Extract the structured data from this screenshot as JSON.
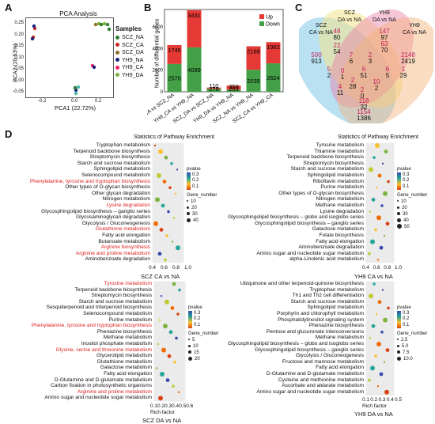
{
  "panels": {
    "a": "A",
    "b": "B",
    "c": "C",
    "d": "D"
  },
  "pca": {
    "title": "PCA Analysis",
    "xlabel": "PCA1 (22.72%)",
    "ylabel": "PCA2 (20.53%)",
    "legend_title": "Samples",
    "ticks_x": [
      "-0.2",
      "0.0",
      "0.2"
    ],
    "ticks_y": [
      "0.25",
      "0.20",
      "0.15",
      "0.10",
      "0.05",
      "0.00",
      "-0.05"
    ],
    "samples": [
      {
        "name": "SCZ_NA",
        "color": "#2e7d32"
      },
      {
        "name": "SCZ_CA",
        "color": "#c62828"
      },
      {
        "name": "SCZ_DA",
        "color": "#8d6e2a"
      },
      {
        "name": "YH9_NA",
        "color": "#1a237e"
      },
      {
        "name": "YH9_CA",
        "color": "#e91e63"
      },
      {
        "name": "YH9_DA",
        "color": "#7cb342"
      }
    ]
  },
  "bar": {
    "ylabel": "Number of differential genes",
    "legend": [
      "Up",
      "Down"
    ],
    "up_color": "#e53935",
    "down_color": "#43a047",
    "yticks": [
      "0",
      "2000",
      "4000",
      "6000"
    ],
    "chart_data": {
      "type": "bar",
      "categories": [
        "SCZ_CA vs SCZ_NA",
        "YH9_CA vs YH9_NA",
        "SCZ_DA vs SCZ_NA",
        "YH9_DA vs YH9_NA",
        "SCZ_NA vs YH9_NA",
        "SCZ_CA vs YH9_CA"
      ],
      "series": [
        {
          "name": "Up",
          "values": [
            1745,
            3431,
            110,
            359,
            2168,
            1962
          ]
        },
        {
          "name": "Down",
          "values": [
            2570,
            4099,
            278,
            203,
            2035,
            2624
          ]
        }
      ]
    }
  },
  "venn": {
    "labels": [
      {
        "text": "SCZ\nCA vs NA"
      },
      {
        "text": "SCZ\nDA vs NA"
      },
      {
        "text": "YH9\nDA vs NA"
      },
      {
        "text": "YH9\nCA vs NA"
      }
    ],
    "numbers": [
      {
        "up": "500",
        "down": "913"
      },
      {
        "up": "48",
        "down": "80"
      },
      {
        "up": "22",
        "down": "54"
      },
      {
        "up": "147",
        "down": "97"
      },
      {
        "up": "63",
        "down": "70"
      },
      {
        "up": "2148",
        "down": "2419"
      },
      {
        "up": "7",
        "down": "6"
      },
      {
        "up": "2",
        "down": "3"
      },
      {
        "up": "5",
        "down": "2"
      },
      {
        "up": "0",
        "down": "1"
      },
      {
        "up": "6",
        "down": "51"
      },
      {
        "up": "6",
        "down": "5"
      },
      {
        "up": "1",
        "down": "29"
      },
      {
        "up": "2",
        "down": "28"
      },
      {
        "up": "4",
        "down": "11"
      },
      {
        "up": "10",
        "down": "2"
      },
      {
        "up": "2",
        "down": "0"
      },
      {
        "up": "118",
        "down": "32"
      },
      {
        "up": "1154",
        "down": "1386"
      }
    ]
  },
  "enrich_header": "Statistics of Pathway Enrichment",
  "enrich": [
    {
      "label": "SCZ CA vs NA",
      "paths": [
        {
          "t": "Tryptophan metabolism",
          "red": false
        },
        {
          "t": "Terpenoid backbone biosynthesis",
          "red": false
        },
        {
          "t": "Streptomycin biosynthesis",
          "red": false
        },
        {
          "t": "Starch and sucrose metabolism",
          "red": false
        },
        {
          "t": "Sphingolipid metabolism",
          "red": false
        },
        {
          "t": "Selenocompound metabolism",
          "red": false
        },
        {
          "t": "Phenylalanine, tyrosine and tryptophan biosynthesis",
          "red": true
        },
        {
          "t": "Other types of O-glycan biosynthesis",
          "red": false
        },
        {
          "t": "Other glycan degradation",
          "red": false
        },
        {
          "t": "Nitrogen metabolism",
          "red": false
        },
        {
          "t": "Lysine degradation",
          "red": true
        },
        {
          "t": "Glycosphingolipid biosynthesis – ganglio series",
          "red": false
        },
        {
          "t": "Glycosaminoglycan degradation",
          "red": false
        },
        {
          "t": "Glycolysis / Gluconeogenesis",
          "red": false
        },
        {
          "t": "Glutathione metabolism",
          "red": true
        },
        {
          "t": "Fatty acid elongation",
          "red": false
        },
        {
          "t": "Butanoate metabolism",
          "red": false
        },
        {
          "t": "Arginine biosynthesis",
          "red": true
        },
        {
          "t": "Arginine and proline metabolism",
          "red": true
        },
        {
          "t": "Aminobenzoate degradation",
          "red": false
        }
      ],
      "xticks": [
        "0.4",
        "0.6",
        "0.8",
        "1.0"
      ],
      "legend_pvalue": [
        "0.3",
        "0.2",
        "0.1"
      ],
      "legend_gene": [
        "10",
        "20",
        "30",
        "40"
      ]
    },
    {
      "label": "YH9 CA vs NA",
      "paths": [
        {
          "t": "Tyrosine metabolism",
          "red": false
        },
        {
          "t": "Thiamine metabolism",
          "red": false
        },
        {
          "t": "Terpenoid backbone biosynthesis",
          "red": false
        },
        {
          "t": "Streptomycin biosynthesis",
          "red": false
        },
        {
          "t": "Starch and sucrose metabolism",
          "red": false
        },
        {
          "t": "Sphingolipid metabolism",
          "red": false
        },
        {
          "t": "Riboflavin metabolism",
          "red": false
        },
        {
          "t": "Purine metabolism",
          "red": false
        },
        {
          "t": "Other types of O-glycan biosynthesis",
          "red": false
        },
        {
          "t": "Nitrogen metabolism",
          "red": false
        },
        {
          "t": "Methane metabolism",
          "red": false
        },
        {
          "t": "Lysine degradation",
          "red": false
        },
        {
          "t": "Glycosphingolipid biosynthesis – globo and isoglobo series",
          "red": false
        },
        {
          "t": "Glycosphingolipid biosynthesis – ganglio series",
          "red": false
        },
        {
          "t": "Galactose metabolism",
          "red": false
        },
        {
          "t": "Folate biosynthesis",
          "red": false
        },
        {
          "t": "Fatty acid elongation",
          "red": false
        },
        {
          "t": "Aminobenzoate degradation",
          "red": false
        },
        {
          "t": "Amino sugar and nucleotide sugar metabolism",
          "red": false
        },
        {
          "t": "alpha-Linolenic acid metabolism",
          "red": false
        }
      ],
      "xticks": [
        "0.4",
        "0.6",
        "0.8",
        "1.0"
      ],
      "legend_pvalue": [
        "0.3",
        "0.2",
        "0.1"
      ],
      "legend_gene": [
        "10",
        "20",
        "30",
        "40",
        "50"
      ]
    },
    {
      "label": "SCZ DA vs NA",
      "paths": [
        {
          "t": "Tyrosine metabolism",
          "red": true
        },
        {
          "t": "Terpenoid backbone biosynthesis",
          "red": false
        },
        {
          "t": "Streptomycin biosynthesis",
          "red": false
        },
        {
          "t": "Starch and sucrose metabolism",
          "red": false
        },
        {
          "t": "Sesquiterpenoid and triterpenoid biosynthesis",
          "red": false
        },
        {
          "t": "Selenocompound metabolism",
          "red": false
        },
        {
          "t": "Purine metabolism",
          "red": false
        },
        {
          "t": "Phenylalanine, tyrosine and tryptophan biosynthesis",
          "red": true
        },
        {
          "t": "Phenazine biosynthesis",
          "red": false
        },
        {
          "t": "Methane metabolism",
          "red": false
        },
        {
          "t": "Inositol phosphate metabolism",
          "red": false
        },
        {
          "t": "Glycine, serine and threonine metabolism",
          "red": true
        },
        {
          "t": "Glycerolipid metabolism",
          "red": false
        },
        {
          "t": "Glutathione metabolism",
          "red": false
        },
        {
          "t": "Galactose metabolism",
          "red": false
        },
        {
          "t": "Fatty acid elongation",
          "red": false
        },
        {
          "t": "D-Glutamine and D-glutamate metabolism",
          "red": false
        },
        {
          "t": "Carbon fixation in photosynthetic organisms",
          "red": false
        },
        {
          "t": "Arginine and proline metabolism",
          "red": true
        },
        {
          "t": "Amino sugar and nucleotide sugar metabolism",
          "red": false
        }
      ],
      "xticks": [
        "0.1",
        "0.2",
        "0.3",
        "0.4",
        "0.5",
        "0.6"
      ],
      "xlabel": "Rich factor",
      "legend_pvalue": [
        "0.3",
        "0.2",
        "0.1"
      ],
      "legend_gene": [
        "5",
        "10",
        "15",
        "20"
      ]
    },
    {
      "label": "YH9 DA vs NA",
      "paths": [
        {
          "t": "Ubiquinone and other terpenoid-quinone biosynthesis",
          "red": false
        },
        {
          "t": "Tryptophan metabolism",
          "red": false
        },
        {
          "t": "Th1 and Th2 cell differentiation",
          "red": false
        },
        {
          "t": "Starch and sucrose metabolism",
          "red": false
        },
        {
          "t": "Sphingolipid metabolism",
          "red": false
        },
        {
          "t": "Porphyrin and chlorophyll metabolism",
          "red": false
        },
        {
          "t": "Phosphatidylinositol signaling system",
          "red": false
        },
        {
          "t": "Phenazine biosynthesis",
          "red": false
        },
        {
          "t": "Pentose and glucuronate interconversions",
          "red": false
        },
        {
          "t": "Methane metabolism",
          "red": false
        },
        {
          "t": "Glycosphingolipid biosynthesis – globo and isoglobo series",
          "red": false
        },
        {
          "t": "Glycosphingolipid biosynthesis – ganglio series",
          "red": false
        },
        {
          "t": "Glycolysis / Gluconeogenesis",
          "red": false
        },
        {
          "t": "Fructose and mannose metabolism",
          "red": false
        },
        {
          "t": "Fatty acid elongation",
          "red": false
        },
        {
          "t": "D-Glutamine and D-glutamate metabolism",
          "red": false
        },
        {
          "t": "Cysteine and methionine metabolism",
          "red": false
        },
        {
          "t": "Ascorbate and aldarate metabolism",
          "red": false
        },
        {
          "t": "Amino sugar and nucleotide sugar metabolism",
          "red": false
        }
      ],
      "xticks": [
        "0.1",
        "0.2",
        "0.3",
        "0.4",
        "0.5"
      ],
      "xlabel": "Rich factor",
      "legend_pvalue": [
        "0.3",
        "0.2",
        "0.1"
      ],
      "legend_gene": [
        "2.5",
        "5.0",
        "7.5",
        "10.0"
      ]
    }
  ]
}
